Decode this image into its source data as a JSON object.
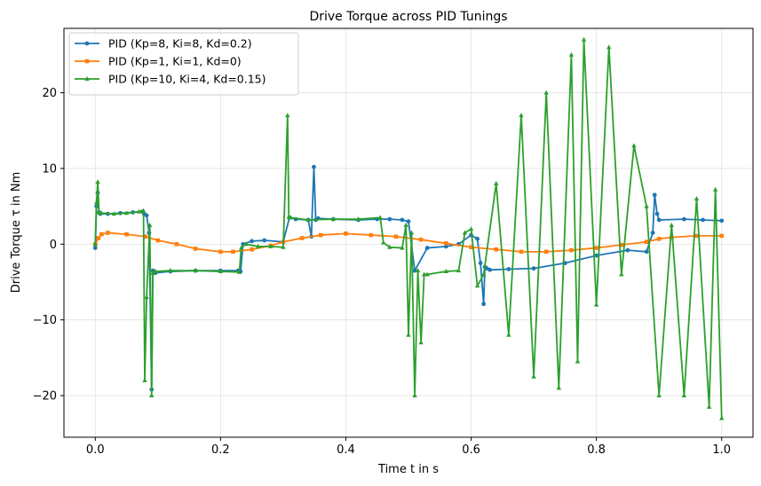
{
  "chart_data": {
    "type": "line",
    "title": "Drive Torque across PID Tunings",
    "xlabel": "Time t in s",
    "ylabel": "Drive Torque τ in Nm",
    "xlim": [
      -0.05,
      1.05
    ],
    "ylim": [
      -25.5,
      28.5
    ],
    "xticks": [
      0.0,
      0.2,
      0.4,
      0.6,
      0.8,
      1.0
    ],
    "xtick_labels": [
      "0.0",
      "0.2",
      "0.4",
      "0.6",
      "0.8",
      "1.0"
    ],
    "yticks": [
      -20,
      -10,
      0,
      10,
      20
    ],
    "ytick_labels": [
      "−20",
      "−10",
      "0",
      "10",
      "20"
    ],
    "grid": true,
    "legend_position": "top-left",
    "series": [
      {
        "name": "PID (Kp=8, Ki=8, Kd=0.2)",
        "color": "#1f77b4",
        "marker": "circle",
        "x": [
          0.0,
          0.002,
          0.004,
          0.006,
          0.008,
          0.02,
          0.04,
          0.06,
          0.075,
          0.078,
          0.082,
          0.086,
          0.09,
          0.092,
          0.096,
          0.12,
          0.16,
          0.2,
          0.228,
          0.232,
          0.236,
          0.25,
          0.27,
          0.3,
          0.31,
          0.32,
          0.34,
          0.345,
          0.349,
          0.352,
          0.356,
          0.38,
          0.42,
          0.45,
          0.47,
          0.49,
          0.5,
          0.51,
          0.53,
          0.56,
          0.58,
          0.6,
          0.61,
          0.615,
          0.62,
          0.622,
          0.625,
          0.63,
          0.66,
          0.7,
          0.75,
          0.8,
          0.85,
          0.88,
          0.89,
          0.893,
          0.897,
          0.9,
          0.94,
          0.97,
          1.0
        ],
        "y": [
          -0.5,
          5.0,
          6.8,
          4.2,
          4.0,
          4.0,
          4.1,
          4.2,
          4.3,
          4.0,
          3.8,
          1.5,
          -19.2,
          -3.5,
          -3.8,
          -3.6,
          -3.5,
          -3.5,
          -3.5,
          -3.6,
          0.0,
          0.4,
          0.5,
          0.3,
          3.5,
          3.3,
          3.2,
          1.0,
          10.2,
          3.2,
          3.4,
          3.3,
          3.2,
          3.3,
          3.3,
          3.2,
          3.0,
          -3.5,
          -0.5,
          -0.3,
          0.0,
          1.2,
          0.7,
          -2.5,
          -7.9,
          -3.0,
          -3.2,
          -3.4,
          -3.3,
          -3.2,
          -2.5,
          -1.5,
          -0.8,
          -1.0,
          1.5,
          6.5,
          4.0,
          3.2,
          3.3,
          3.2,
          3.1
        ]
      },
      {
        "name": "PID (Kp=1, Ki=1, Kd=0)",
        "color": "#ff7f0e",
        "marker": "square",
        "x": [
          0.0,
          0.005,
          0.01,
          0.02,
          0.05,
          0.08,
          0.1,
          0.13,
          0.16,
          0.2,
          0.22,
          0.25,
          0.28,
          0.3,
          0.33,
          0.36,
          0.4,
          0.44,
          0.48,
          0.52,
          0.56,
          0.6,
          0.64,
          0.68,
          0.72,
          0.76,
          0.8,
          0.84,
          0.88,
          0.9,
          0.92,
          0.96,
          1.0
        ],
        "y": [
          0.0,
          0.8,
          1.3,
          1.5,
          1.3,
          1.0,
          0.5,
          0.0,
          -0.6,
          -1.0,
          -1.0,
          -0.7,
          -0.2,
          0.3,
          0.8,
          1.2,
          1.4,
          1.2,
          1.0,
          0.6,
          0.1,
          -0.4,
          -0.7,
          -1.0,
          -1.0,
          -0.8,
          -0.5,
          -0.1,
          0.3,
          0.7,
          0.9,
          1.1,
          1.1
        ]
      },
      {
        "name": "PID (Kp=10, Ki=4, Kd=0.15)",
        "color": "#2ca02c",
        "marker": "triangle",
        "x": [
          0.0,
          0.002,
          0.004,
          0.006,
          0.01,
          0.03,
          0.05,
          0.07,
          0.077,
          0.079,
          0.082,
          0.087,
          0.09,
          0.092,
          0.096,
          0.12,
          0.16,
          0.2,
          0.23,
          0.233,
          0.24,
          0.26,
          0.28,
          0.3,
          0.307,
          0.309,
          0.312,
          0.34,
          0.38,
          0.42,
          0.455,
          0.46,
          0.47,
          0.49,
          0.496,
          0.5,
          0.505,
          0.51,
          0.515,
          0.52,
          0.525,
          0.53,
          0.56,
          0.58,
          0.59,
          0.6,
          0.61,
          0.62,
          0.64,
          0.66,
          0.68,
          0.7,
          0.72,
          0.74,
          0.76,
          0.77,
          0.78,
          0.8,
          0.82,
          0.84,
          0.86,
          0.88,
          0.9,
          0.92,
          0.94,
          0.96,
          0.98,
          0.99,
          1.0
        ],
        "y": [
          0.0,
          5.5,
          8.2,
          4.2,
          4.1,
          4.0,
          4.1,
          4.3,
          4.4,
          -18.0,
          -7.0,
          2.5,
          -20.0,
          -3.8,
          -3.6,
          -3.5,
          -3.5,
          -3.6,
          -3.7,
          -0.5,
          0.0,
          -0.3,
          -0.3,
          -0.4,
          17.0,
          3.6,
          3.5,
          3.2,
          3.3,
          3.3,
          3.5,
          0.2,
          -0.4,
          -0.5,
          2.5,
          -12.0,
          1.5,
          -20.0,
          -3.5,
          -13.0,
          -4.0,
          -4.0,
          -3.6,
          -3.5,
          1.5,
          2.0,
          -5.5,
          -4.0,
          8.0,
          -12.0,
          17.0,
          -17.5,
          20.0,
          -19.0,
          25.0,
          -15.5,
          27.0,
          -8.0,
          26.0,
          -4.0,
          13.0,
          5.0,
          -20.0,
          2.5,
          -20.0,
          6.0,
          -21.5,
          7.2,
          -23.0
        ]
      }
    ]
  }
}
